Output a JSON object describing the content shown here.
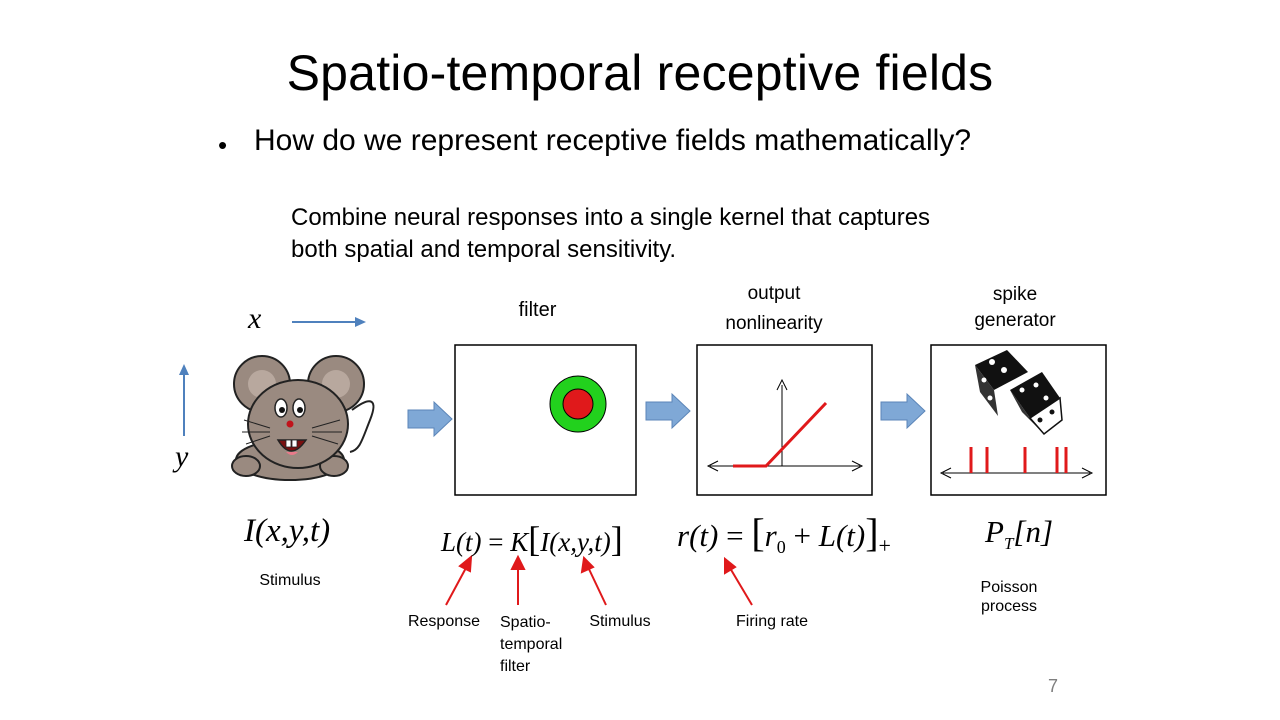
{
  "slide": {
    "title": "Spatio-temporal receptive fields",
    "bullet": "How do we represent receptive fields mathematically?",
    "description_line1": "Combine neural responses into a single kernel that captures",
    "description_line2": "both spatial and temporal sensitivity.",
    "page_number": "7"
  },
  "diagram": {
    "axis_x": "x",
    "axis_y": "y",
    "filter_label": "filter",
    "output_label_line1": "output",
    "output_label_line2": "nonlinearity",
    "spike_label_line1": "spike",
    "spike_label_line2": "generator"
  },
  "equations": {
    "stimulus_eq": "I(x,y,t)",
    "filter_eq_lhs": "L(t)",
    "filter_eq_eq": "=",
    "filter_eq_k": "K",
    "filter_eq_arg": "I(x,y,t)",
    "rate_eq_lhs": "r(t)",
    "rate_eq_eq": "=",
    "rate_eq_r": "r",
    "rate_eq_sub0": "0",
    "rate_eq_plus": "+",
    "rate_eq_l": "L(t)",
    "rate_eq_subplus": "+",
    "poisson_eq_p": "P",
    "poisson_eq_sub": "T",
    "poisson_eq_n": "[n]"
  },
  "annotations": {
    "stimulus": "Stimulus",
    "response": "Response",
    "spatio_line1": "Spatio-",
    "spatio_line2": "temporal",
    "spatio_line3": "filter",
    "stimulus2": "Stimulus",
    "firing_rate": "Firing rate",
    "poisson_line1": "Poisson",
    "poisson_line2": "process"
  },
  "colors": {
    "block_arrow": "#7fa8d6",
    "axis_arrow": "#4f81bd",
    "red": "#e0191b",
    "green": "#22d11d",
    "mouse_body": "#9a8a80"
  }
}
